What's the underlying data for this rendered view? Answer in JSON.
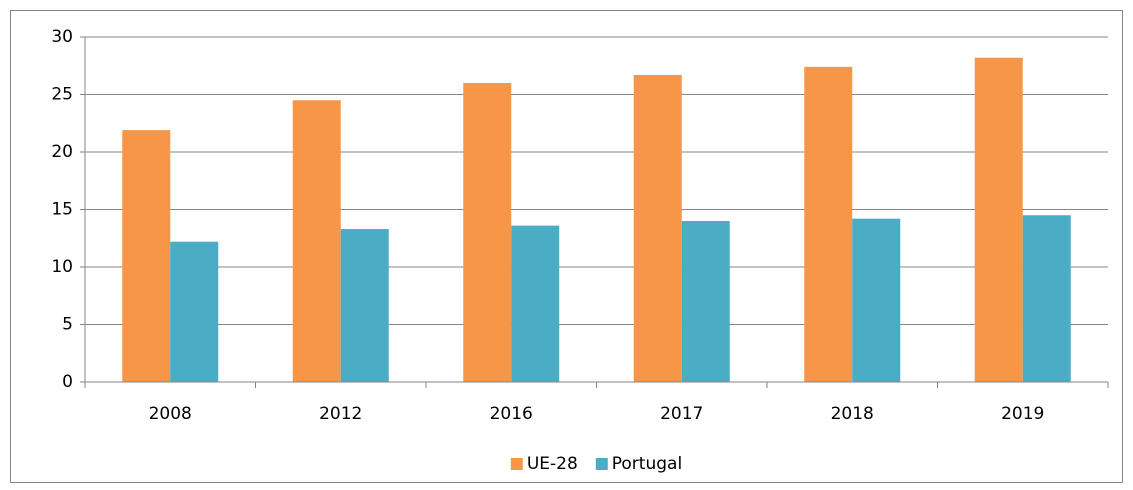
{
  "chart_data": {
    "type": "grouped_bar",
    "categories": [
      "2008",
      "2012",
      "2016",
      "2017",
      "2018",
      "2019"
    ],
    "series": [
      {
        "name": "UE-28",
        "color": "#f79646",
        "values": [
          21.9,
          24.5,
          26.0,
          26.7,
          27.4,
          28.2
        ]
      },
      {
        "name": "Portugal",
        "color": "#4bacc6",
        "values": [
          12.2,
          13.3,
          13.6,
          14.0,
          14.2,
          14.5
        ]
      }
    ],
    "ylim": [
      0,
      30
    ],
    "yticks": [
      0,
      5,
      10,
      15,
      20,
      25,
      30
    ],
    "grid": true,
    "legend": "bottom"
  }
}
